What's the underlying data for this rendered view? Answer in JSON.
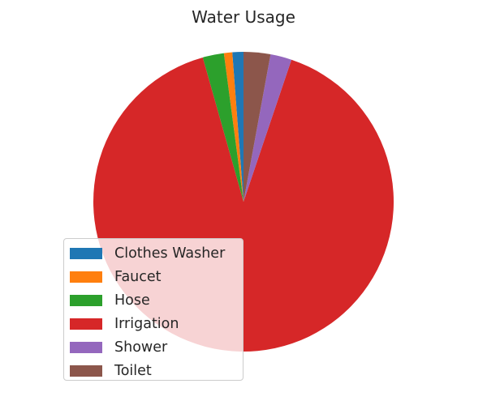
{
  "chart_data": {
    "type": "pie",
    "title": "Water Usage",
    "categories": [
      "Clothes Washer",
      "Faucet",
      "Hose",
      "Irrigation",
      "Shower",
      "Toilet"
    ],
    "values": [
      1.2,
      0.9,
      2.3,
      90.9,
      2.3,
      2.9
    ],
    "unit": "percent",
    "colors": [
      "#1f77b4",
      "#ff7f0e",
      "#2ca02c",
      "#d62728",
      "#9467bd",
      "#8c564b"
    ],
    "start_angle_deg": 90,
    "direction": "counterclockwise",
    "legend_placement": "lower-left",
    "grid": false
  }
}
